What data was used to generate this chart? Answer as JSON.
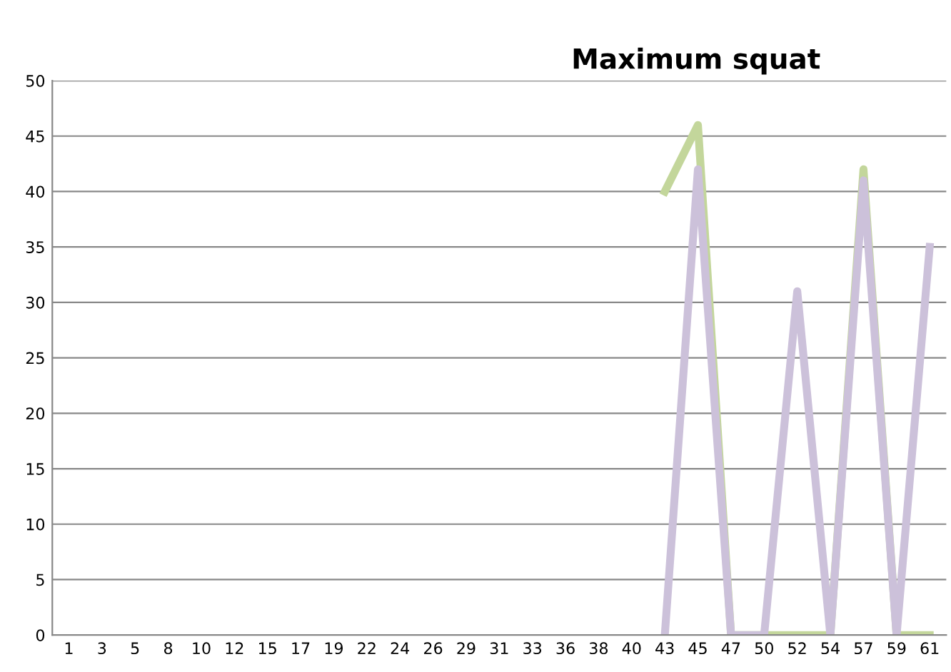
{
  "chart_data": {
    "type": "line",
    "title": "Maximum squat",
    "categories": [
      "1",
      "3",
      "5",
      "8",
      "10",
      "12",
      "15",
      "17",
      "19",
      "22",
      "24",
      "26",
      "29",
      "31",
      "33",
      "36",
      "38",
      "40",
      "43",
      "45",
      "47",
      "50",
      "52",
      "54",
      "57",
      "59",
      "61"
    ],
    "series": [
      {
        "color": "#c3d69b",
        "values": [
          null,
          null,
          null,
          null,
          null,
          null,
          null,
          null,
          null,
          null,
          null,
          null,
          null,
          null,
          null,
          null,
          null,
          null,
          40,
          46,
          0,
          0,
          0,
          0,
          42,
          0,
          0
        ]
      },
      {
        "color": "#ccc1da",
        "values": [
          null,
          null,
          null,
          null,
          null,
          null,
          null,
          null,
          null,
          null,
          null,
          null,
          null,
          null,
          null,
          null,
          null,
          null,
          0,
          42,
          0,
          0,
          31,
          0,
          41,
          0,
          35
        ]
      }
    ],
    "ylim": [
      0,
      50
    ],
    "yticks": [
      0,
      5,
      10,
      15,
      20,
      25,
      30,
      35,
      40,
      45,
      50
    ],
    "grid": "y",
    "legend": false,
    "marker": "none",
    "line_style": "solid"
  }
}
